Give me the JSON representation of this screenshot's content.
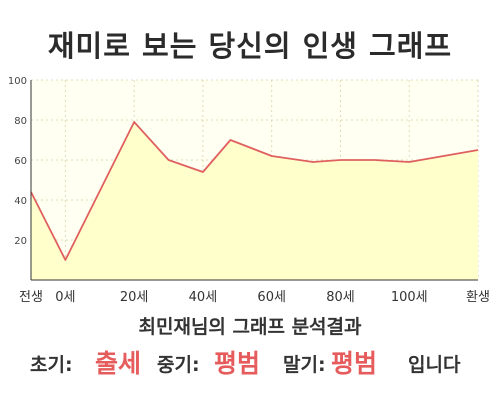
{
  "title": "재미로 보는 당신의 인생 그래프",
  "result_title": "최민재님의 그래프 분석결과",
  "summary": {
    "early_label": "초기:",
    "early_value": "출세",
    "mid_label": "중기:",
    "mid_value": "평범",
    "late_label": "말기:",
    "late_value": "평범",
    "ending": "입니다"
  },
  "colors": {
    "accent": "#e65c5c",
    "fill": "#ffffcc",
    "line": "#e06060",
    "plot_bg": "#fffff2",
    "grid": "#dcdcb8"
  },
  "chart_data": {
    "type": "area",
    "title": "재미로 보는 당신의 인생 그래프",
    "xlabel": "",
    "ylabel": "",
    "ylim": [
      0,
      100
    ],
    "yticks": [
      20,
      40,
      60,
      80,
      100
    ],
    "xlim": [
      -10,
      120
    ],
    "xticks": [
      {
        "pos": -10,
        "label": "전생"
      },
      {
        "pos": 0,
        "label": "0세"
      },
      {
        "pos": 20,
        "label": "20세"
      },
      {
        "pos": 40,
        "label": "40세"
      },
      {
        "pos": 60,
        "label": "60세"
      },
      {
        "pos": 80,
        "label": "80세"
      },
      {
        "pos": 100,
        "label": "100세"
      },
      {
        "pos": 120,
        "label": "환생"
      }
    ],
    "grid": true,
    "series": [
      {
        "x": [
          -10,
          0,
          20,
          30,
          40,
          48,
          60,
          72,
          80,
          90,
          100,
          120
        ],
        "values": [
          44,
          10,
          79,
          60,
          54,
          70,
          62,
          59,
          60,
          60,
          59,
          65
        ]
      }
    ]
  }
}
